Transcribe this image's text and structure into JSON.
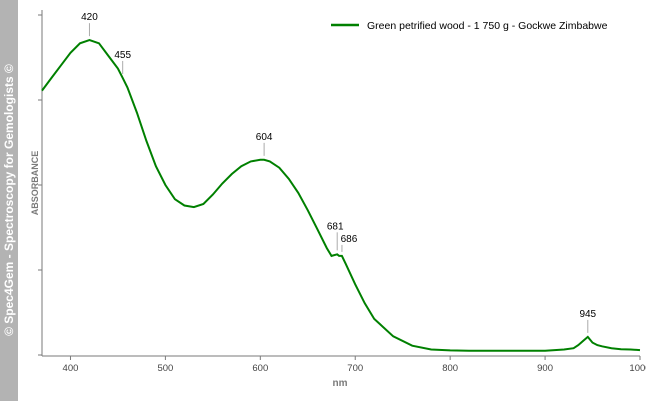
{
  "watermark": "© Spec4Gem - Spectroscopy for Gemologists ©",
  "colors": {
    "series": "#008000",
    "axis": "#7a7a7a",
    "tick_label": "#444444",
    "label_text": "#000000",
    "watermark_bg": "#b3b3b3"
  },
  "chart_data": {
    "type": "line",
    "xlabel": "nm",
    "ylabel": "ABSORBANCE",
    "xlim": [
      370,
      1000
    ],
    "ylim": [
      0,
      1
    ],
    "y_tick_labels": false,
    "x_ticks": [
      400,
      500,
      600,
      700,
      800,
      900,
      1000
    ],
    "x_tick_labels": [
      "400",
      "500",
      "600",
      "700",
      "800",
      "900",
      "1000"
    ],
    "legend_position": "top-right",
    "series": [
      {
        "name": "Green petrified wood - 1 750 g - Gockwe Zimbabwe",
        "color": "#008000",
        "x": [
          370,
          380,
          390,
          400,
          410,
          420,
          430,
          440,
          450,
          455,
          460,
          470,
          480,
          490,
          500,
          510,
          520,
          530,
          540,
          550,
          560,
          570,
          580,
          590,
          600,
          604,
          610,
          620,
          630,
          640,
          650,
          660,
          670,
          675,
          681,
          683,
          686,
          690,
          700,
          710,
          720,
          740,
          760,
          780,
          800,
          820,
          840,
          860,
          880,
          900,
          920,
          930,
          935,
          940,
          945,
          950,
          955,
          960,
          970,
          980,
          990,
          1000
        ],
        "y": [
          0.83,
          0.87,
          0.91,
          0.95,
          0.98,
          0.99,
          0.98,
          0.94,
          0.9,
          0.87,
          0.84,
          0.76,
          0.67,
          0.59,
          0.53,
          0.485,
          0.465,
          0.46,
          0.47,
          0.5,
          0.535,
          0.565,
          0.59,
          0.605,
          0.61,
          0.61,
          0.605,
          0.585,
          0.55,
          0.505,
          0.45,
          0.39,
          0.33,
          0.305,
          0.31,
          0.305,
          0.305,
          0.28,
          0.215,
          0.155,
          0.105,
          0.05,
          0.02,
          0.008,
          0.005,
          0.004,
          0.004,
          0.004,
          0.004,
          0.004,
          0.008,
          0.012,
          0.022,
          0.035,
          0.048,
          0.03,
          0.022,
          0.018,
          0.012,
          0.009,
          0.008,
          0.006
        ]
      }
    ],
    "annotations": [
      {
        "label": "420",
        "x": 420,
        "y": 0.99
      },
      {
        "label": "455",
        "x": 455,
        "y": 0.87
      },
      {
        "label": "604",
        "x": 604,
        "y": 0.61
      },
      {
        "label": "681",
        "x": 681,
        "y": 0.31
      },
      {
        "label": "686",
        "x": 686,
        "y": 0.305
      },
      {
        "label": "945",
        "x": 945,
        "y": 0.048
      }
    ]
  }
}
